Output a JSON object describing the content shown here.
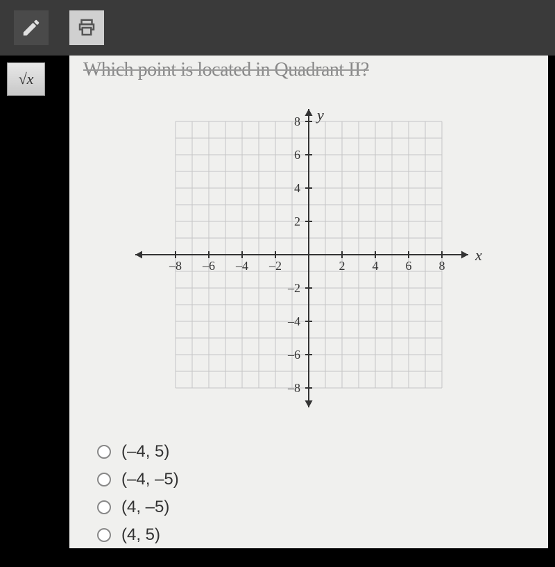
{
  "toolbar": {
    "pencil_icon": "✎",
    "printer_icon": "⎙",
    "sqrt_label": "√x"
  },
  "question_text": "Which point is located in Quadrant II?",
  "chart": {
    "type": "coordinate-plane",
    "xlim": [
      -9,
      9
    ],
    "ylim": [
      -9,
      9
    ],
    "xlabel": "x",
    "ylabel": "y",
    "x_ticks": [
      -8,
      -6,
      -4,
      -2,
      2,
      4,
      6,
      8
    ],
    "y_ticks": [
      -8,
      -6,
      -4,
      -2,
      2,
      4,
      6,
      8
    ],
    "grid_min": -8,
    "grid_max": 8,
    "grid_color": "#c5c5c5",
    "axis_color": "#333333",
    "background_color": "#f0f0ee",
    "tick_fontsize": 18,
    "label_fontsize": 22,
    "label_font": "Times New Roman",
    "tick_length": 5,
    "axis_stroke_width": 2,
    "grid_stroke_width": 1,
    "arrow_size": 10
  },
  "answers": [
    {
      "label": "(–4, 5)"
    },
    {
      "label": "(–4, –5)"
    },
    {
      "label": "(4, –5)"
    },
    {
      "label": "(4, 5)"
    }
  ]
}
